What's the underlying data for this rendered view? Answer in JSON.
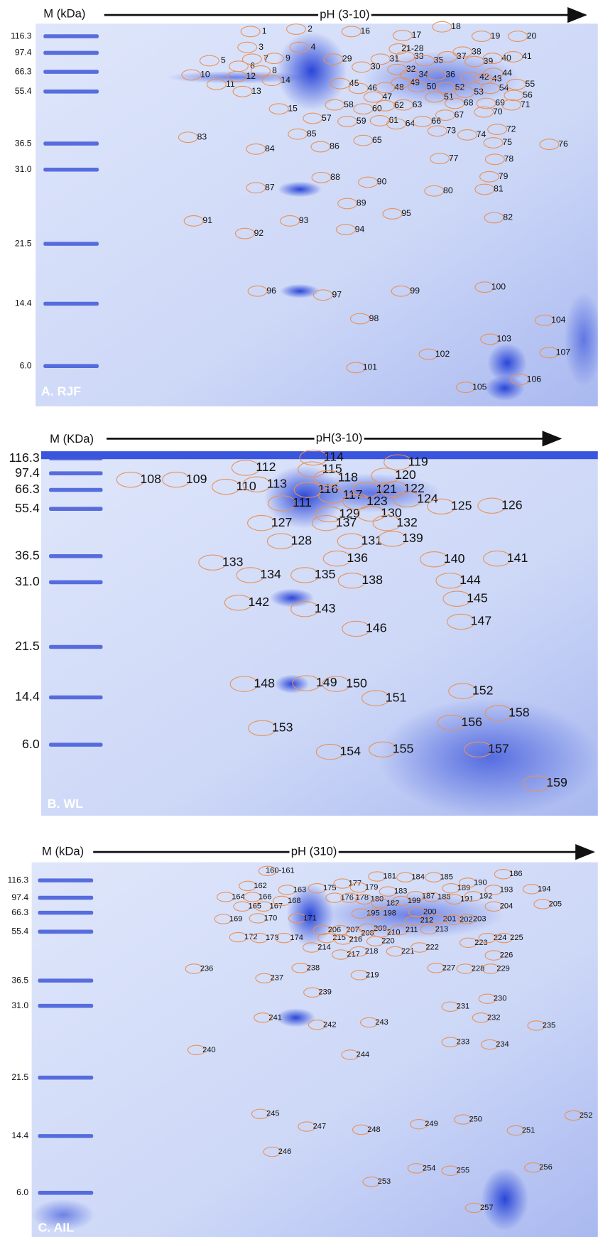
{
  "panels": [
    {
      "panel_label": "A. RJF",
      "mass_axis_label": "M (kDa)",
      "ph_axis_label": "pH (3-10)",
      "markers": [
        "116.3",
        "97.4",
        "66.3",
        "55.4",
        "36.5",
        "31.0",
        "21.5",
        "14.4",
        "6.0"
      ],
      "spots": [
        "1",
        "2",
        "3",
        "4",
        "5",
        "6",
        "7",
        "8",
        "9",
        "10",
        "11",
        "12",
        "13",
        "14",
        "15",
        "16",
        "17",
        "18",
        "19",
        "20",
        "21-28",
        "29",
        "30",
        "31",
        "32",
        "33",
        "34",
        "35",
        "36",
        "37",
        "38",
        "39",
        "40",
        "41",
        "42",
        "43",
        "44",
        "45",
        "46",
        "47",
        "48",
        "49",
        "50",
        "51",
        "52",
        "53",
        "54",
        "55",
        "56",
        "57",
        "58",
        "59",
        "60",
        "61",
        "62",
        "63",
        "64",
        "65",
        "66",
        "67",
        "68",
        "69",
        "70",
        "71",
        "72",
        "73",
        "74",
        "75",
        "76",
        "77",
        "78",
        "79",
        "80",
        "81",
        "82",
        "83",
        "84",
        "85",
        "86",
        "87",
        "88",
        "89",
        "90",
        "91",
        "92",
        "93",
        "94",
        "95",
        "96",
        "97",
        "98",
        "99",
        "100",
        "101",
        "102",
        "103",
        "104",
        "105",
        "106",
        "107"
      ]
    },
    {
      "panel_label": "B. WL",
      "mass_axis_label": "M (KDa)",
      "ph_axis_label": "pH(3-10)",
      "markers": [
        "116.3",
        "97.4",
        "66.3",
        "55.4",
        "36.5",
        "31.0",
        "21.5",
        "14.4",
        "6.0"
      ],
      "spots": [
        "108",
        "109",
        "110",
        "111",
        "112",
        "113",
        "114",
        "115",
        "116",
        "117",
        "118",
        "119",
        "120",
        "121",
        "122",
        "123",
        "124",
        "125",
        "126",
        "127",
        "128",
        "129",
        "130",
        "131",
        "132",
        "133",
        "134",
        "135",
        "136",
        "137",
        "138",
        "139",
        "140",
        "141",
        "142",
        "143",
        "144",
        "145",
        "146",
        "147",
        "148",
        "149",
        "150",
        "151",
        "152",
        "153",
        "154",
        "155",
        "156",
        "157",
        "158",
        "159"
      ]
    },
    {
      "panel_label": "C. AIL",
      "mass_axis_label": "M (kDa)",
      "ph_axis_label": "pH (310)",
      "markers": [
        "116.3",
        "97.4",
        "66.3",
        "55.4",
        "36.5",
        "31.0",
        "21.5",
        "14.4",
        "6.0"
      ],
      "spots": [
        "160-161",
        "162",
        "163",
        "164",
        "165",
        "166",
        "167",
        "168",
        "169",
        "170",
        "171",
        "172",
        "173",
        "174",
        "175",
        "176",
        "177",
        "178",
        "179",
        "180",
        "181",
        "182",
        "183",
        "184",
        "185",
        "186",
        "187",
        "188",
        "189",
        "190",
        "191",
        "192",
        "193",
        "194",
        "195",
        "198",
        "199",
        "200",
        "201",
        "202",
        "203",
        "204",
        "205",
        "206",
        "207",
        "208",
        "209",
        "210",
        "211",
        "212",
        "213",
        "214",
        "215",
        "216",
        "217",
        "218",
        "219",
        "220",
        "221",
        "222",
        "223",
        "224",
        "225",
        "226",
        "227",
        "228",
        "229",
        "230",
        "231",
        "232",
        "233",
        "234",
        "235",
        "236",
        "237",
        "238",
        "239",
        "240",
        "241",
        "242",
        "243",
        "244",
        "245",
        "246",
        "247",
        "248",
        "249",
        "250",
        "251",
        "252",
        "253",
        "254",
        "255",
        "256",
        "257"
      ]
    }
  ]
}
